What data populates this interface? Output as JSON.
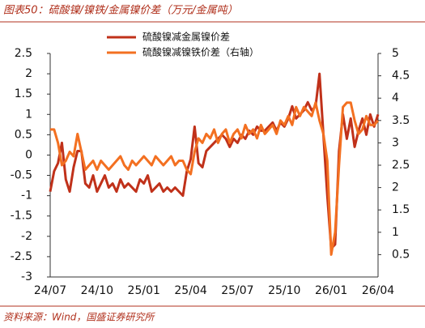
{
  "chart_data": {
    "type": "line",
    "title": "图表50：硫酸镍/镍铁/金属镍价差（万元/金属吨）",
    "source": "资料来源：Wind，国盛证券研究所",
    "categories": [
      "24/07",
      null,
      null,
      null,
      null,
      null,
      null,
      null,
      null,
      null,
      null,
      null,
      "24/10",
      null,
      null,
      null,
      null,
      null,
      null,
      null,
      null,
      null,
      null,
      null,
      "25/01",
      null,
      null,
      null,
      null,
      null,
      null,
      null,
      null,
      null,
      null,
      null,
      "25/04",
      null,
      null,
      null,
      null,
      null,
      null,
      null,
      null,
      null,
      null,
      null,
      "25/07",
      null,
      null,
      null,
      null,
      null,
      null,
      null,
      null,
      null,
      null,
      null,
      "25/10",
      null,
      null,
      null,
      null,
      null,
      null,
      null,
      null,
      null,
      null,
      null,
      "26/01",
      null,
      null,
      null,
      null,
      null,
      null,
      null,
      null,
      null,
      null,
      null,
      "26/04"
    ],
    "series": [
      {
        "name": "硫酸镍减金属镍价差",
        "color": "#c0311a",
        "axis": "y",
        "values": [
          -0.9,
          -0.4,
          -0.2,
          0.3,
          -0.6,
          -0.9,
          -0.3,
          0.1,
          0.1,
          -0.7,
          -0.8,
          -0.5,
          -0.9,
          -0.7,
          -0.5,
          -0.8,
          -0.7,
          -0.9,
          -0.6,
          -0.8,
          -0.7,
          -0.8,
          -0.9,
          -0.6,
          -0.7,
          -0.5,
          -0.9,
          -0.8,
          -0.7,
          -0.9,
          -0.8,
          -0.9,
          -0.8,
          -0.9,
          -1.0,
          -0.4,
          -0.1,
          0.7,
          -0.2,
          -0.3,
          0.1,
          0.2,
          0.3,
          0.4,
          0.5,
          0.4,
          0.2,
          0.4,
          0.3,
          0.5,
          0.4,
          0.6,
          0.5,
          0.7,
          0.6,
          0.6,
          0.7,
          0.8,
          0.6,
          0.8,
          0.7,
          0.9,
          1.2,
          0.9,
          1.0,
          1.1,
          1.3,
          1.1,
          1.2,
          2.0,
          0.5,
          -1.0,
          -2.3,
          -2.2,
          0.1,
          1.0,
          0.4,
          0.9,
          0.2,
          0.6,
          0.9,
          0.5,
          1.0,
          0.7,
          1.0
        ]
      },
      {
        "name": "硫酸镍减镍铁价差（右轴）",
        "color": "#f37021",
        "axis": "y2",
        "values": [
          3.3,
          3.3,
          3.0,
          2.5,
          2.6,
          2.8,
          2.7,
          3.2,
          2.8,
          2.4,
          2.5,
          2.6,
          2.4,
          2.6,
          2.5,
          2.4,
          2.5,
          2.6,
          2.7,
          2.5,
          2.4,
          2.6,
          2.5,
          2.6,
          2.7,
          2.6,
          2.5,
          2.7,
          2.6,
          2.5,
          2.6,
          2.7,
          2.5,
          2.6,
          2.6,
          2.4,
          2.3,
          2.8,
          3.1,
          3.0,
          3.2,
          3.1,
          3.3,
          3.0,
          3.2,
          3.3,
          3.0,
          3.2,
          3.3,
          3.1,
          3.4,
          3.2,
          3.3,
          3.1,
          3.4,
          3.2,
          3.3,
          3.4,
          3.2,
          3.5,
          3.4,
          3.6,
          3.4,
          3.8,
          3.6,
          3.8,
          3.7,
          3.6,
          3.9,
          3.5,
          3.2,
          2.6,
          0.5,
          1.0,
          2.5,
          3.8,
          3.9,
          3.9,
          3.5,
          3.2,
          3.3,
          3.6,
          3.4,
          3.4,
          3.5
        ]
      }
    ],
    "ylim": [
      -3,
      2.5
    ],
    "yticks": [
      2.5,
      2,
      1.5,
      1,
      0.5,
      0,
      -0.5,
      -1,
      -1.5,
      -2,
      -2.5,
      -3
    ],
    "y2lim": [
      0,
      5
    ],
    "y2ticks": [
      5,
      4.5,
      4,
      3.5,
      3,
      2.5,
      2,
      1.5,
      1,
      0.5
    ],
    "grid": false,
    "legend": "top"
  }
}
